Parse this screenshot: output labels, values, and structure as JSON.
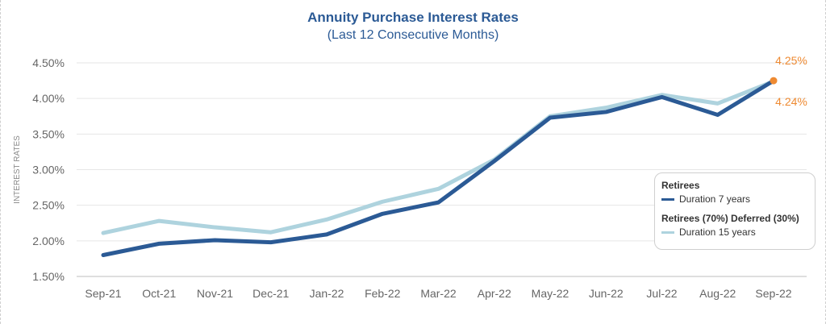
{
  "chart_data": {
    "type": "line",
    "title": "Annuity Purchase Interest Rates",
    "subtitle": "(Last 12 Consecutive Months)",
    "ylabel": "INTEREST RATES",
    "xlabel": "",
    "ylim": [
      1.5,
      4.5
    ],
    "yticks": [
      1.5,
      2.0,
      2.5,
      3.0,
      3.5,
      4.0,
      4.5
    ],
    "ytick_labels": [
      "1.50%",
      "2.00%",
      "2.50%",
      "3.00%",
      "3.50%",
      "4.00%",
      "4.50%"
    ],
    "grid": true,
    "categories": [
      "Sep-21",
      "Oct-21",
      "Nov-21",
      "Dec-21",
      "Jan-22",
      "Feb-22",
      "Mar-22",
      "Apr-22",
      "May-22",
      "Jun-22",
      "Jul-22",
      "Aug-22",
      "Sep-22"
    ],
    "series": [
      {
        "name": "Duration 15 years",
        "group": "Retirees (70%) Deferred (30%)",
        "color": "#aed3de",
        "values": [
          2.11,
          2.28,
          2.19,
          2.12,
          2.3,
          2.55,
          2.73,
          3.14,
          3.75,
          3.87,
          4.05,
          3.93,
          4.24
        ]
      },
      {
        "name": "Duration 7 years",
        "group": "Retirees",
        "color": "#2b5a95",
        "values": [
          1.8,
          1.96,
          2.01,
          1.98,
          2.09,
          2.38,
          2.54,
          3.12,
          3.73,
          3.81,
          4.02,
          3.77,
          4.25
        ]
      }
    ],
    "annotations": [
      {
        "text": "4.25%",
        "series": 1,
        "index": 12,
        "position": "above",
        "color": "#ee8a32"
      },
      {
        "text": "4.24%",
        "series": 0,
        "index": 12,
        "position": "below",
        "color": "#ee8a32"
      }
    ],
    "highlight_point": {
      "series": 1,
      "index": 12,
      "color": "#ee8a32"
    },
    "legend": {
      "position": "right",
      "groups": [
        {
          "title": "Retirees",
          "entry": "Duration 7 years",
          "color": "#2b5a95"
        },
        {
          "title": "Retirees (70%) Deferred (30%)",
          "entry": "Duration 15 years",
          "color": "#aed3de"
        }
      ]
    }
  }
}
